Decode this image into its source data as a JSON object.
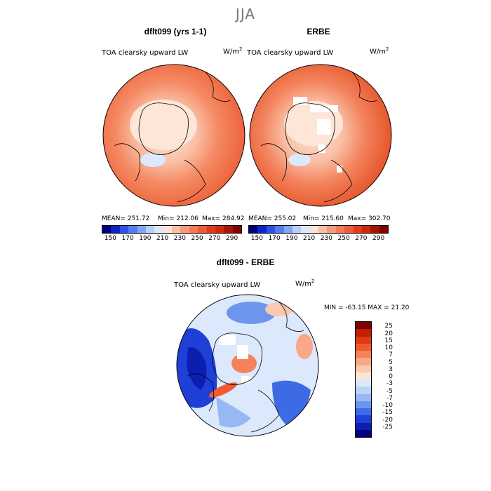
{
  "figure_title": "JJA",
  "panels": {
    "model": {
      "title": "dflt099 (yrs 1-1)",
      "variable": "TOA clearsky upward LW",
      "unit": "W/m",
      "unit_sup": "2",
      "mean_text": "MEAN= 251.72",
      "min_text": "Min= 212.06",
      "max_text": "Max= 284.92"
    },
    "obs": {
      "title": "ERBE",
      "variable": "TOA clearsky upward LW",
      "unit": "W/m",
      "unit_sup": "2",
      "mean_text": "MEAN= 255.02",
      "min_text": "Min= 215.60",
      "max_text": "Max= 302.70"
    },
    "diff": {
      "title": "dflt099 - ERBE",
      "variable": "TOA clearsky upward LW",
      "unit": "W/m",
      "unit_sup": "2",
      "minmax_text": "MIN = -63.15 MAX =  21.20"
    }
  },
  "abs_colorbar": {
    "labels": [
      "150",
      "170",
      "190",
      "210",
      "230",
      "250",
      "270",
      "290"
    ],
    "colors": [
      "#000080",
      "#0a24c8",
      "#2a52e6",
      "#4f7fee",
      "#7ea6f4",
      "#b7cff7",
      "#dde7fb",
      "#fde3d3",
      "#f9bea3",
      "#f79a78",
      "#f37a55",
      "#ee5a36",
      "#e43a16",
      "#cc2a06",
      "#a81400",
      "#800000"
    ]
  },
  "diff_colorbar": {
    "labels": [
      "25",
      "20",
      "15",
      "10",
      "7",
      "5",
      "3",
      "0",
      "-3",
      "-5",
      "-7",
      "-10",
      "-15",
      "-20",
      "-25"
    ],
    "colors": [
      "#800000",
      "#c02000",
      "#e03a12",
      "#f05a2e",
      "#f5825a",
      "#f8a884",
      "#fbc8b0",
      "#fde6d8",
      "#dce8fb",
      "#bcd2f7",
      "#98b8f3",
      "#6e95ee",
      "#3d6be6",
      "#1e40d6",
      "#0a1eb0",
      "#000080"
    ]
  }
}
